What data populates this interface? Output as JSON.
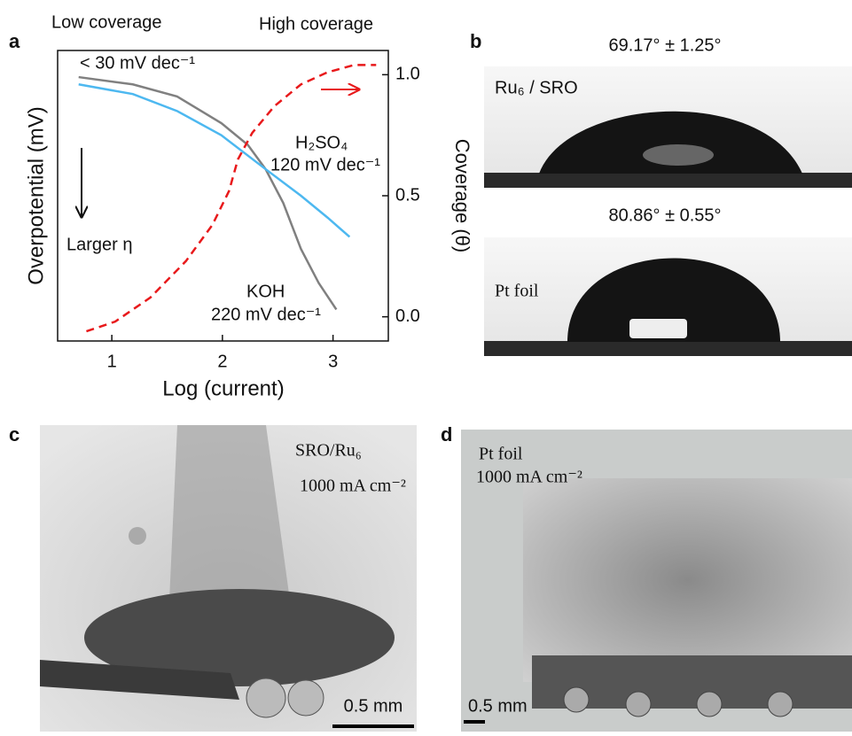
{
  "panel_labels": [
    "a",
    "b",
    "c",
    "d"
  ],
  "chart_data": {
    "type": "line",
    "xlabel": "Log (current)",
    "ylabel": "Overpotential (mV)",
    "y2label": "Coverage (θ)",
    "xlim": [
      0.51,
      3.5
    ],
    "xticks": [
      1,
      2,
      3
    ],
    "ylim": [
      -0.1,
      1.1
    ],
    "y2lim": [
      -0.1,
      1.1
    ],
    "y2ticks": [
      {
        "value": 0,
        "label": "0.0"
      },
      {
        "value": 0.5,
        "label": "0.5"
      },
      {
        "value": 1,
        "label": "1.0"
      }
    ],
    "series": [
      {
        "name": "KOH",
        "color": "#808080",
        "dash": false,
        "x": [
          0.7,
          1.19,
          1.59,
          1.99,
          2.23,
          2.39,
          2.55,
          2.71,
          2.87,
          3.03
        ],
        "values": [
          0.99,
          0.96,
          0.91,
          0.8,
          0.71,
          0.61,
          0.47,
          0.28,
          0.14,
          0.03
        ]
      },
      {
        "name": "H₂SO₄",
        "color": "#4db8f0",
        "dash": false,
        "x": [
          0.7,
          1.19,
          1.59,
          1.99,
          2.39,
          2.71,
          2.95,
          3.15
        ],
        "values": [
          0.96,
          0.92,
          0.85,
          0.75,
          0.61,
          0.5,
          0.41,
          0.33
        ]
      },
      {
        "axis": "y2",
        "color": "#e8191b",
        "dash": true,
        "x": [
          0.77,
          1.03,
          1.35,
          1.67,
          1.91,
          2.06,
          2.14,
          2.27,
          2.47,
          2.71,
          2.95,
          3.19,
          3.39
        ],
        "values": [
          -0.06,
          -0.02,
          0.08,
          0.23,
          0.38,
          0.52,
          0.65,
          0.76,
          0.87,
          0.96,
          1.01,
          1.04,
          1.04
        ]
      }
    ],
    "annotations": [
      "Low coverage",
      "High coverage",
      "< 30 mV dec⁻¹",
      "120 mV dec⁻¹",
      "220 mV dec⁻¹",
      "Larger η"
    ]
  },
  "panel_b": {
    "samples": [
      {
        "angle": "69.17° ± 1.25°",
        "label": "Ru₆ / SRO"
      },
      {
        "angle": "80.86° ± 0.55°",
        "label": "Pt foil"
      }
    ]
  },
  "panel_c": {
    "label": "SRO/Ru₆",
    "current": "1000 mA cm⁻²",
    "scale": "0.5 mm"
  },
  "panel_d": {
    "label": "Pt foil",
    "current": "1000 mA cm⁻²",
    "scale": "0.5 mm"
  }
}
